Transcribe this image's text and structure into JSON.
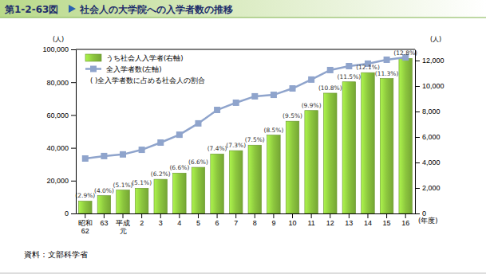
{
  "chart_data": {
    "type": "bar",
    "figure_number": "第1-2-63図",
    "title": "社会人の大学院への入学者数の推移",
    "source": "資料：文部科学省",
    "y_unit": "(人)",
    "y2_unit": "(人)",
    "x_unit": "(年度)",
    "legend_note": "(   )全入学者数に占める社会人の割合",
    "categories": [
      "昭和\n62",
      "63",
      "平成\n元",
      "2",
      "3",
      "4",
      "5",
      "6",
      "7",
      "8",
      "9",
      "10",
      "11",
      "12",
      "13",
      "14",
      "15",
      "16"
    ],
    "annotations": [
      "(2.9%)",
      "(4.0%)",
      "(5.1%)",
      "(5.1%)",
      "(6.2%)",
      "(6.6%)",
      "(6.6%)",
      "(7.4%)",
      "(7.3%)",
      "(7.5%)",
      "(8.5%)",
      "(9.5%)",
      "(9.9%)",
      "(10.8%)",
      "(11.5%)",
      "(12.1%)",
      "(11.3%)",
      "(12.8%)"
    ],
    "series": [
      {
        "name": "うち社会人入学者(右軸)",
        "type": "bar",
        "axis": "y2",
        "color": "#8cc63e",
        "values": [
          970,
          1400,
          1840,
          1980,
          2680,
          3170,
          3620,
          4670,
          4930,
          5360,
          6150,
          7240,
          8080,
          9440,
          10330,
          11050,
          10590,
          12170
        ]
      },
      {
        "name": "全入学者数(左軸)",
        "type": "line",
        "axis": "y",
        "color": "#8fa4cc",
        "marker": "square",
        "line_style": "solid",
        "values": [
          33500,
          35000,
          36000,
          38800,
          43200,
          48000,
          54900,
          63100,
          67500,
          71400,
          72300,
          76200,
          81600,
          87400,
          89800,
          91300,
          93700,
          95100
        ]
      }
    ],
    "ylim": [
      0,
      100000
    ],
    "yticks": [
      0,
      {
        "value": 20000,
        "label": "20,000"
      },
      {
        "value": 40000,
        "label": "40,000"
      },
      {
        "value": 60000,
        "label": "60,000"
      },
      {
        "value": 80000,
        "label": "80,000"
      },
      {
        "value": 100000,
        "label": "100,000"
      }
    ],
    "y2lim": [
      0,
      12875
    ],
    "y2ticks": [
      0,
      {
        "value": 2000,
        "label": "2,000"
      },
      {
        "value": 4000,
        "label": "4,000"
      },
      {
        "value": 6000,
        "label": "6,000"
      },
      {
        "value": 8000,
        "label": "8,000"
      },
      {
        "value": 10000,
        "label": "10,000"
      },
      {
        "value": 12000,
        "label": "12,000"
      }
    ],
    "grid": false,
    "legend": "top-left"
  }
}
